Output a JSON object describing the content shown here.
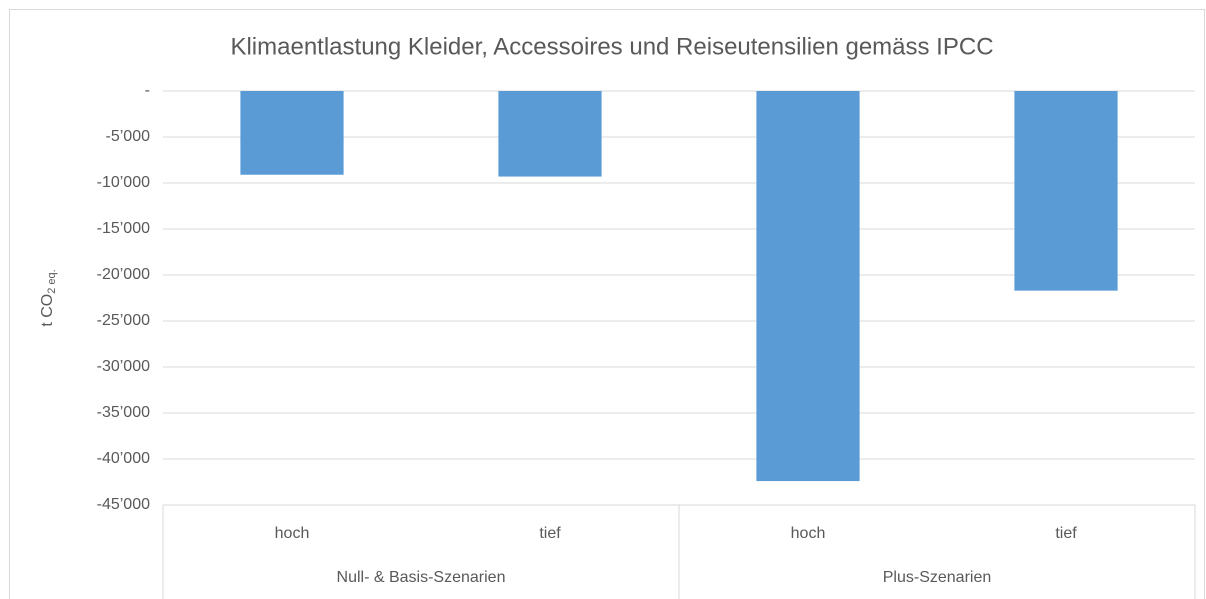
{
  "chart_data": {
    "type": "bar",
    "title": "Klimaentlastung Kleider, Accessoires und Reiseutensilien gemäss IPCC",
    "y_label": [
      "t CO",
      "2 eq."
    ],
    "groups": [
      {
        "name": "Null- & Basis-Szenarien",
        "categories": [
          "hoch",
          "tief"
        ],
        "values": [
          -9100,
          -9300
        ]
      },
      {
        "name": "Plus-Szenarien",
        "categories": [
          "hoch",
          "tief"
        ],
        "values": [
          -42400,
          -21700
        ]
      }
    ],
    "color": "#5b9bd5",
    "ylim": [
      -45000,
      0
    ],
    "yticks": [
      {
        "value": 0,
        "label": "-"
      },
      {
        "value": -5000,
        "label": "-5’000"
      },
      {
        "value": -10000,
        "label": "-10’000"
      },
      {
        "value": -15000,
        "label": "-15’000"
      },
      {
        "value": -20000,
        "label": "-20’000"
      },
      {
        "value": -25000,
        "label": "-25’000"
      },
      {
        "value": -30000,
        "label": "-30’000"
      },
      {
        "value": -35000,
        "label": "-35’000"
      },
      {
        "value": -40000,
        "label": "-40’000"
      },
      {
        "value": -45000,
        "label": "-45’000"
      }
    ],
    "grid": true
  }
}
